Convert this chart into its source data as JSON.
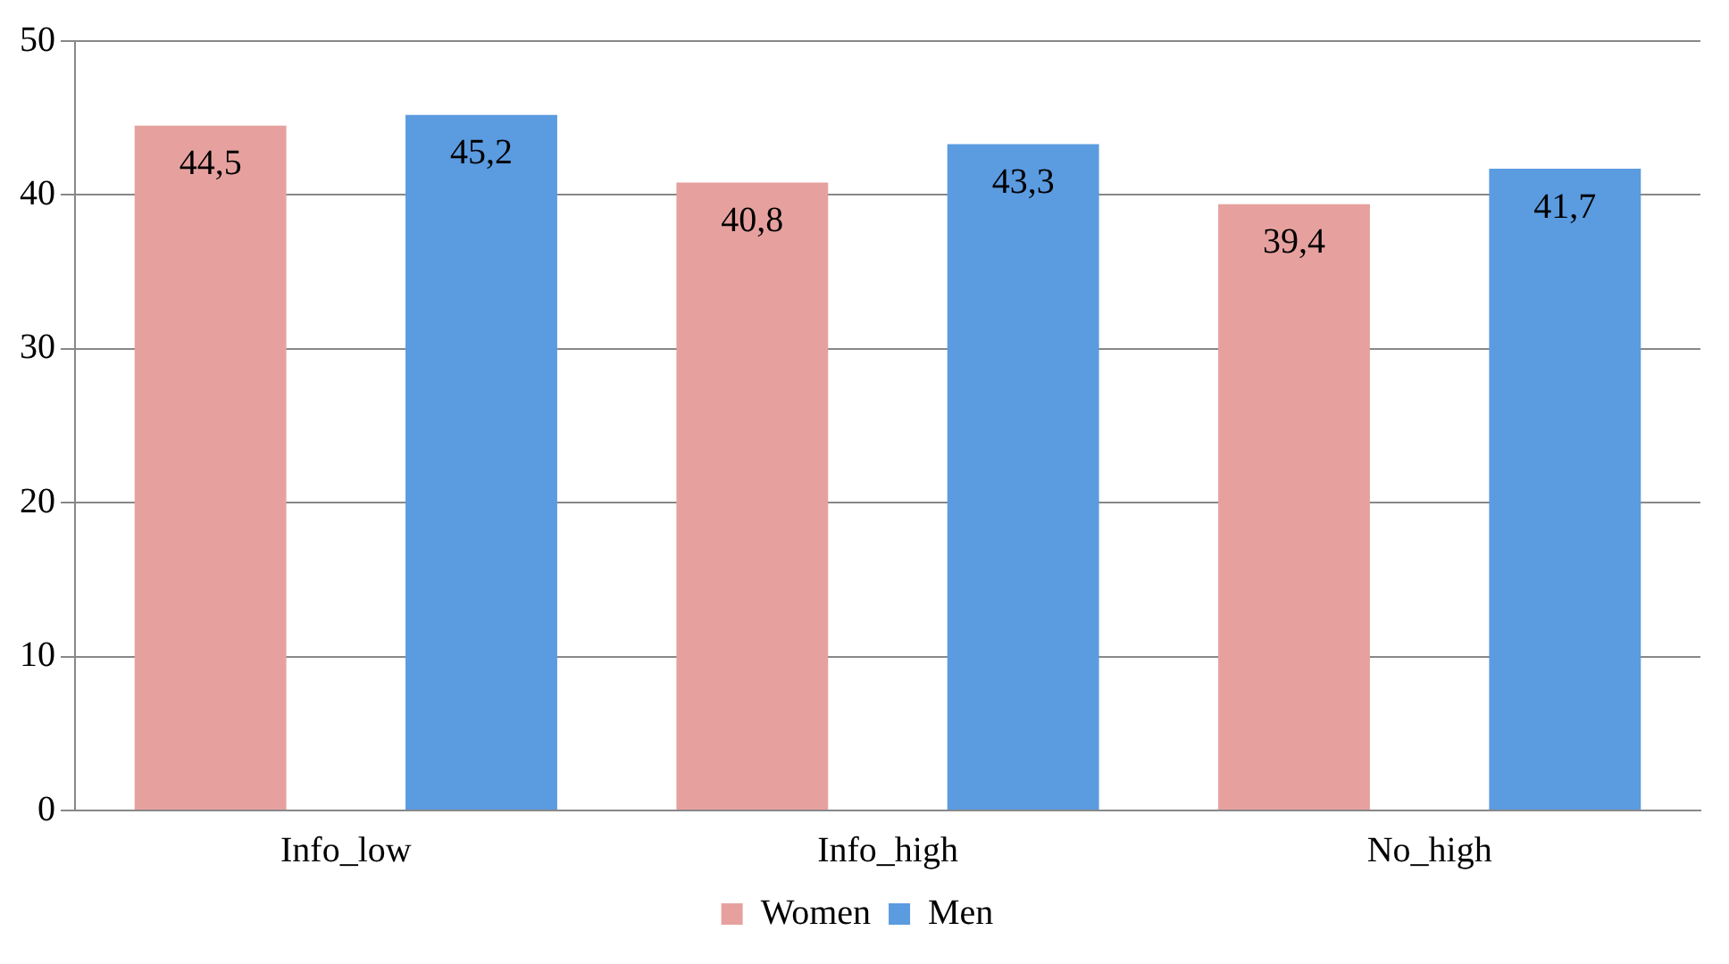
{
  "chart_data": {
    "type": "bar",
    "categories": [
      "Info_low",
      "Info_high",
      "No_high"
    ],
    "series": [
      {
        "name": "Women",
        "color": "#e6a19f",
        "values": [
          44.5,
          40.8,
          39.4
        ],
        "value_labels": [
          "44,5",
          "40,8",
          "39,4"
        ]
      },
      {
        "name": "Men",
        "color": "#5b9be0",
        "values": [
          45.2,
          43.3,
          41.7
        ],
        "value_labels": [
          "45,2",
          "43,3",
          "41,7"
        ]
      }
    ],
    "ylim": [
      0,
      50
    ],
    "yticks": [
      0,
      10,
      20,
      30,
      40,
      50
    ],
    "grid": "y",
    "legend": "bottom"
  }
}
